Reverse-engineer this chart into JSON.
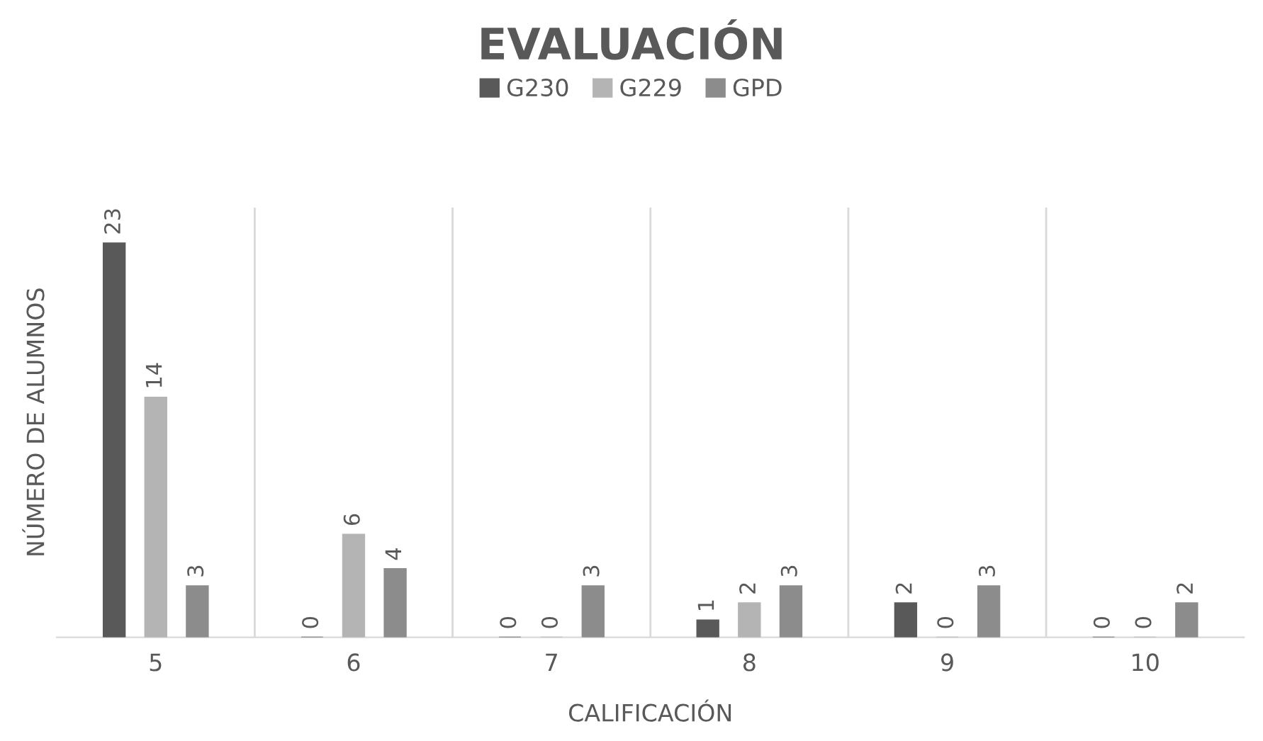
{
  "chart_data": {
    "type": "bar",
    "title": "EVALUACIÓN",
    "xlabel": "CALIFICACIÓN",
    "ylabel": "NÚMERO DE ALUMNOS",
    "categories": [
      "5",
      "6",
      "7",
      "8",
      "9",
      "10"
    ],
    "series": [
      {
        "name": "G230",
        "color": "#595959",
        "values": [
          23,
          0,
          0,
          1,
          2,
          0
        ]
      },
      {
        "name": "G229",
        "color": "#b4b4b4",
        "values": [
          14,
          6,
          0,
          2,
          0,
          0
        ]
      },
      {
        "name": "GPD",
        "color": "#8c8c8c",
        "values": [
          3,
          4,
          3,
          3,
          3,
          2
        ]
      }
    ],
    "data_labels": true,
    "grid": "x",
    "legend": "top"
  }
}
